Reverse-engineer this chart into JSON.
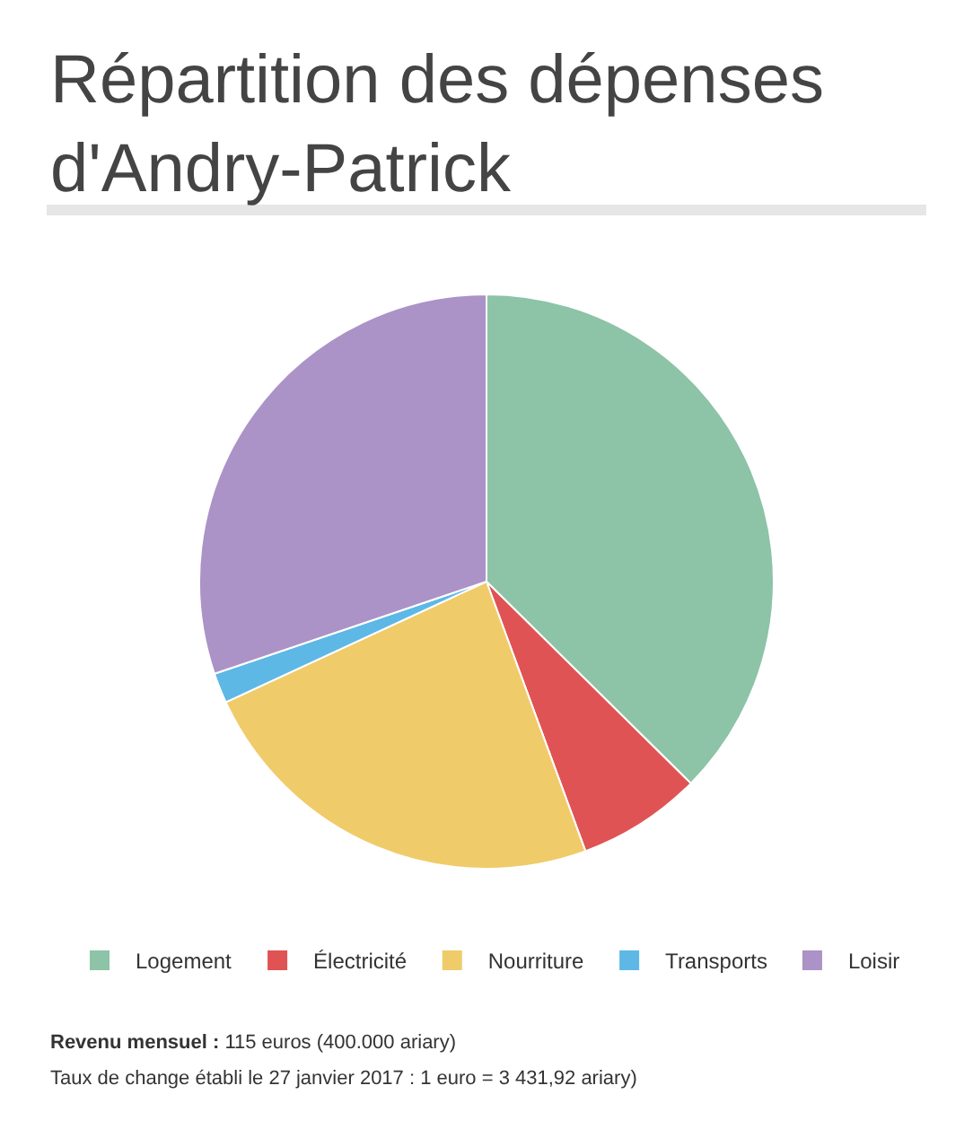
{
  "chart_data": {
    "type": "pie",
    "title": "Répartition des dépenses d'Andry-Patrick",
    "categories": [
      "Logement",
      "Électricité",
      "Nourriture",
      "Transports",
      "Loisir"
    ],
    "values": [
      37.4,
      7.0,
      23.7,
      1.7,
      30.2
    ],
    "colors": [
      "#8dc3a7",
      "#e05354",
      "#f0cb69",
      "#5db8e6",
      "#ab92c7"
    ],
    "legend": "bottom",
    "annotations": [
      "Revenu mensuel : 115 euros (400.000 ariary)",
      "Taux de change établi le 27 janvier 2017 : 1 euro = 3 431,92 ariary)"
    ]
  }
}
